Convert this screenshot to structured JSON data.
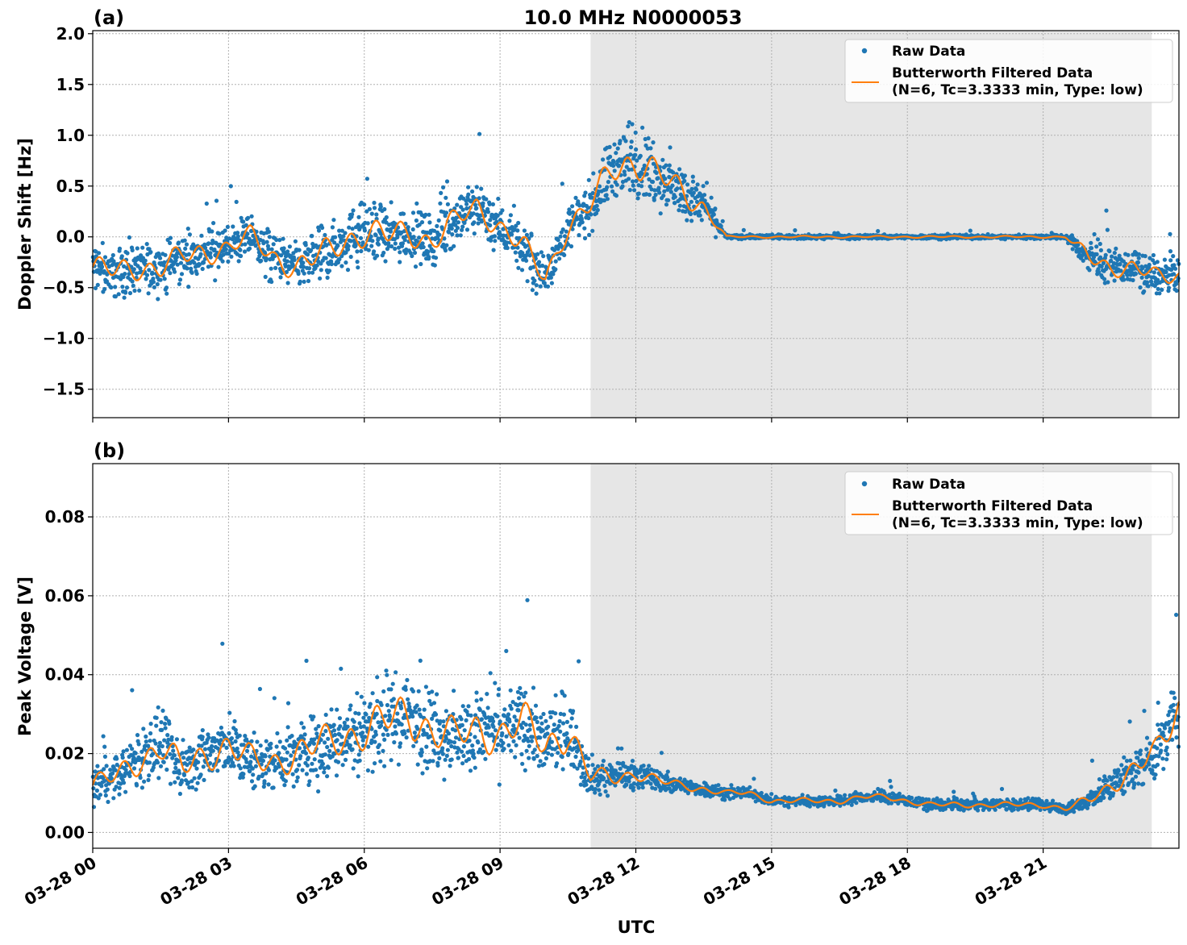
{
  "figure": {
    "title": "10.0 MHz N0000053",
    "xlabel": "UTC",
    "x_ticks": [
      "03-28 00",
      "03-28 03",
      "03-28 06",
      "03-28 09",
      "03-28 12",
      "03-28 15",
      "03-28 18",
      "03-28 21"
    ],
    "colors": {
      "raw": "#1f77b4",
      "filtered": "#ff7f0e",
      "shade": "#e6e6e6"
    },
    "shaded_span_hours": [
      11.0,
      23.4
    ]
  },
  "chart_data": [
    {
      "type": "scatter",
      "panel_label": "(a)",
      "ylabel": "Doppler Shift [Hz]",
      "xlim_hours": [
        0,
        24
      ],
      "ylim": [
        -1.78,
        2.03
      ],
      "y_ticks": [
        2.0,
        1.5,
        1.0,
        0.5,
        0.0,
        -0.5,
        -1.0,
        -1.5
      ],
      "y_tick_labels": [
        "2.0",
        "1.5",
        "1.0",
        "0.5",
        "0.0",
        "−0.5",
        "−1.0",
        "−1.5"
      ],
      "grid": true,
      "legend": {
        "position": "top-right",
        "entries": [
          "Raw Data",
          "Butterworth Filtered Data",
          "(N=6, Tc=3.3333 min, Type: low)"
        ]
      },
      "x_hours": [
        0,
        0.5,
        1,
        1.5,
        2,
        2.5,
        3,
        3.5,
        4,
        4.5,
        5,
        5.5,
        6,
        6.5,
        7,
        7.5,
        8,
        8.5,
        9,
        9.5,
        10,
        10.5,
        11,
        11.5,
        12,
        12.5,
        13,
        13.5,
        14,
        14.5,
        15,
        15.5,
        16,
        16.5,
        17,
        17.5,
        18,
        18.5,
        19,
        19.5,
        20,
        20.5,
        21,
        21.5,
        22,
        22.5,
        23,
        23.5,
        24
      ],
      "series": [
        {
          "name": "Butterworth Filtered Data",
          "values": [
            -0.3,
            -0.35,
            -0.3,
            -0.3,
            -0.2,
            -0.15,
            -0.1,
            0.0,
            -0.2,
            -0.3,
            -0.2,
            -0.05,
            0.05,
            0.0,
            0.05,
            -0.05,
            0.15,
            0.3,
            0.1,
            -0.1,
            -0.4,
            0.1,
            0.3,
            0.7,
            0.75,
            0.6,
            0.45,
            0.3,
            0.0,
            0.0,
            0.0,
            0.0,
            0.0,
            0.0,
            0.0,
            0.0,
            0.0,
            0.0,
            0.0,
            0.0,
            0.0,
            0.0,
            0.0,
            0.0,
            -0.2,
            -0.3,
            -0.3,
            -0.4,
            -0.38
          ]
        },
        {
          "name": "Raw Data",
          "spread": [
            0.35,
            0.35,
            0.35,
            0.35,
            0.35,
            0.35,
            0.3,
            0.3,
            0.35,
            0.35,
            0.4,
            0.4,
            0.45,
            0.4,
            0.4,
            0.35,
            0.35,
            0.35,
            0.35,
            0.35,
            0.3,
            0.3,
            0.35,
            0.5,
            0.5,
            0.45,
            0.4,
            0.3,
            0.03,
            0.03,
            0.03,
            0.03,
            0.03,
            0.03,
            0.03,
            0.03,
            0.03,
            0.03,
            0.03,
            0.03,
            0.03,
            0.03,
            0.03,
            0.03,
            0.25,
            0.25,
            0.25,
            0.25,
            0.25
          ]
        }
      ]
    },
    {
      "type": "scatter",
      "panel_label": "(b)",
      "ylabel": "Peak Voltage [V]",
      "xlim_hours": [
        0,
        24
      ],
      "ylim": [
        -0.004,
        0.0935
      ],
      "y_ticks": [
        0.08,
        0.06,
        0.04,
        0.02,
        0.0
      ],
      "y_tick_labels": [
        "0.08",
        "0.06",
        "0.04",
        "0.02",
        "0.00"
      ],
      "grid": true,
      "legend": {
        "position": "top-right",
        "entries": [
          "Raw Data",
          "Butterworth Filtered Data",
          "(N=6, Tc=3.3333 min, Type: low)"
        ]
      },
      "x_hours": [
        0,
        0.5,
        1,
        1.5,
        2,
        2.5,
        3,
        3.5,
        4,
        4.5,
        5,
        5.5,
        6,
        6.5,
        7,
        7.5,
        8,
        8.5,
        9,
        9.5,
        10,
        10.5,
        11,
        11.5,
        12,
        12.5,
        13,
        13.5,
        14,
        14.5,
        15,
        15.5,
        16,
        16.5,
        17,
        17.5,
        18,
        18.5,
        19,
        19.5,
        20,
        20.5,
        21,
        21.5,
        22,
        22.5,
        23,
        23.5,
        24
      ],
      "series": [
        {
          "name": "Butterworth Filtered Data",
          "values": [
            0.012,
            0.014,
            0.018,
            0.022,
            0.016,
            0.02,
            0.022,
            0.018,
            0.018,
            0.02,
            0.022,
            0.024,
            0.026,
            0.028,
            0.03,
            0.026,
            0.024,
            0.026,
            0.025,
            0.028,
            0.022,
            0.026,
            0.014,
            0.014,
            0.015,
            0.013,
            0.012,
            0.011,
            0.01,
            0.01,
            0.008,
            0.008,
            0.008,
            0.008,
            0.009,
            0.009,
            0.008,
            0.007,
            0.007,
            0.007,
            0.007,
            0.007,
            0.007,
            0.006,
            0.008,
            0.012,
            0.016,
            0.02,
            0.032
          ]
        },
        {
          "name": "Raw Data",
          "spread": [
            0.008,
            0.008,
            0.01,
            0.012,
            0.01,
            0.012,
            0.012,
            0.011,
            0.011,
            0.012,
            0.013,
            0.014,
            0.015,
            0.016,
            0.017,
            0.015,
            0.014,
            0.015,
            0.014,
            0.015,
            0.013,
            0.014,
            0.007,
            0.006,
            0.005,
            0.004,
            0.003,
            0.003,
            0.002,
            0.002,
            0.002,
            0.002,
            0.002,
            0.002,
            0.002,
            0.002,
            0.002,
            0.002,
            0.002,
            0.002,
            0.002,
            0.002,
            0.002,
            0.002,
            0.004,
            0.006,
            0.008,
            0.01,
            0.014
          ]
        }
      ]
    }
  ]
}
